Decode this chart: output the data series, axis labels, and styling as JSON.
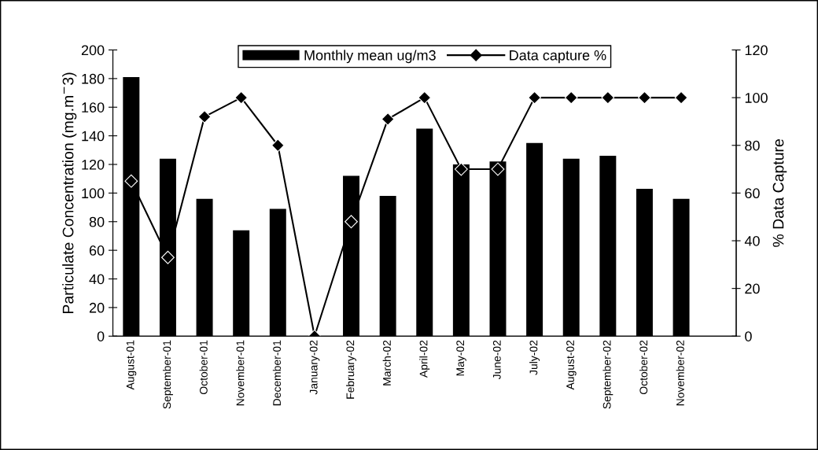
{
  "chart_data": {
    "type": "bar",
    "categories": [
      "August-01",
      "September-01",
      "October-01",
      "November-01",
      "December-01",
      "January-02",
      "February-02",
      "March-02",
      "April-02",
      "May-02",
      "June-02",
      "July-02",
      "August-02",
      "September-02",
      "October-02",
      "November-02",
      null
    ],
    "series": [
      {
        "name": "Monthly mean ug/m3",
        "color": "#000000",
        "values": [
          181,
          124,
          96,
          74,
          89,
          0,
          112,
          98,
          145,
          120,
          122,
          135,
          124,
          126,
          103,
          96,
          null
        ]
      },
      {
        "name": "Data capture %",
        "type": "line",
        "axis": "y2",
        "color": "#000000",
        "marker": "diamond",
        "line_style": "solid",
        "values": [
          65,
          33,
          92,
          100,
          80,
          0,
          48,
          91,
          100,
          70,
          70,
          100,
          100,
          100,
          100,
          100,
          null
        ]
      }
    ],
    "ylabel": "Particulate Concentration (mg.m$^{−}$3)",
    "y2label": "% Data Capture",
    "ylim": [
      0,
      200
    ],
    "yticks": [
      0,
      20,
      40,
      60,
      80,
      100,
      120,
      140,
      160,
      180,
      200
    ],
    "y2lim": [
      0,
      120
    ],
    "y2ticks": [
      0,
      20,
      40,
      60,
      80,
      100,
      120
    ],
    "legend": "top",
    "grid": false
  }
}
